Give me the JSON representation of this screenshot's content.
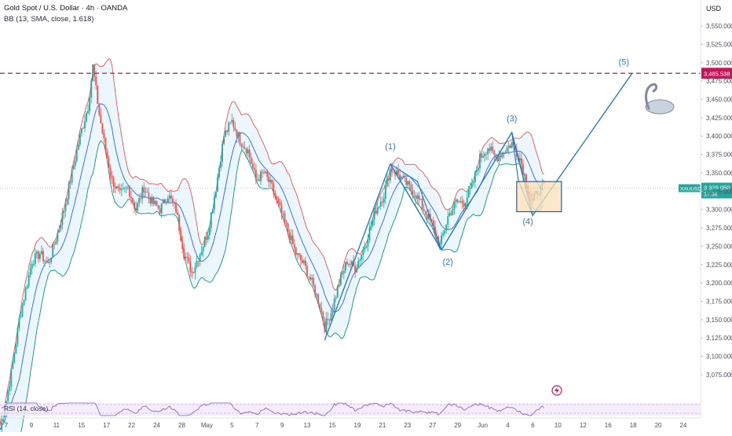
{
  "header": {
    "title": "Gold Spot / U.S. Dollar · 4h · OANDA",
    "indicator": "BB (13, SMA, close, 1.618)"
  },
  "colors": {
    "background": "#ffffff",
    "candle_up": "#26a69a",
    "candle_down": "#ef5350",
    "bb_upper": "#ef5350",
    "bb_basis": "#2962ff",
    "bb_lower": "#089981",
    "bb_fill": "#dceefb",
    "wave_line": "#2a7bbf",
    "target_line": "#c2185b",
    "price_tag": "#26a69a",
    "box_fill": "#fbe0b6",
    "box_stroke": "#1f5fae",
    "rsi_line": "#7e57c2",
    "rsi_band": "#f3e9fb"
  },
  "chart_data": {
    "type": "candlestick",
    "symbol": "XAUUSD",
    "currency_label": "USD",
    "y_range": [
      3045,
      3580
    ],
    "y_ticks": [
      "3,550.000",
      "3,525.000",
      "3,500.000",
      "3,475.000",
      "3,450.000",
      "3,425.000",
      "3,400.000",
      "3,375.000",
      "3,350.000",
      "3,325.000",
      "3,300.000",
      "3,275.000",
      "3,250.000",
      "3,225.000",
      "3,200.000",
      "3,175.000",
      "3,150.000",
      "3,125.000",
      "3,100.000",
      "3,075.000"
    ],
    "y_tick_values": [
      3550,
      3525,
      3500,
      3475,
      3450,
      3425,
      3400,
      3375,
      3350,
      3325,
      3300,
      3275,
      3250,
      3225,
      3200,
      3175,
      3150,
      3125,
      3100,
      3075
    ],
    "x_tick_labels": [
      "7",
      "9",
      "11",
      "15",
      "17",
      "22",
      "24",
      "28",
      "May",
      "5",
      "7",
      "9",
      "13",
      "15",
      "19",
      "21",
      "23",
      "27",
      "29",
      "Jun",
      "4",
      "6",
      "10",
      "12",
      "16",
      "18",
      "20",
      "24"
    ],
    "target_level": {
      "value": 3485.538,
      "label": "3,485.538"
    },
    "current_price": {
      "value": 3329.05,
      "label": "3,329.050",
      "countdown": "17:38",
      "symbol": "XAUUSD"
    },
    "close_path": [
      [
        0,
        3000
      ],
      [
        4,
        3040
      ],
      [
        8,
        3090
      ],
      [
        12,
        3150
      ],
      [
        16,
        3190
      ],
      [
        20,
        3230
      ],
      [
        25,
        3240
      ],
      [
        30,
        3225
      ],
      [
        35,
        3260
      ],
      [
        40,
        3300
      ],
      [
        45,
        3350
      ],
      [
        50,
        3400
      ],
      [
        55,
        3440
      ],
      [
        58,
        3495
      ],
      [
        62,
        3430
      ],
      [
        66,
        3380
      ],
      [
        70,
        3340
      ],
      [
        75,
        3320
      ],
      [
        80,
        3330
      ],
      [
        85,
        3300
      ],
      [
        90,
        3330
      ],
      [
        95,
        3310
      ],
      [
        100,
        3300
      ],
      [
        105,
        3320
      ],
      [
        110,
        3300
      ],
      [
        115,
        3240
      ],
      [
        120,
        3215
      ],
      [
        125,
        3240
      ],
      [
        130,
        3270
      ],
      [
        135,
        3330
      ],
      [
        140,
        3400
      ],
      [
        145,
        3420
      ],
      [
        150,
        3395
      ],
      [
        155,
        3380
      ],
      [
        160,
        3340
      ],
      [
        165,
        3350
      ],
      [
        170,
        3330
      ],
      [
        175,
        3300
      ],
      [
        180,
        3270
      ],
      [
        185,
        3240
      ],
      [
        190,
        3225
      ],
      [
        195,
        3200
      ],
      [
        200,
        3170
      ],
      [
        203,
        3140
      ],
      [
        207,
        3160
      ],
      [
        212,
        3200
      ],
      [
        217,
        3230
      ],
      [
        222,
        3220
      ],
      [
        228,
        3250
      ],
      [
        235,
        3300
      ],
      [
        240,
        3320
      ],
      [
        244,
        3355
      ],
      [
        248,
        3350
      ],
      [
        252,
        3340
      ],
      [
        256,
        3330
      ],
      [
        260,
        3320
      ],
      [
        265,
        3300
      ],
      [
        270,
        3280
      ],
      [
        275,
        3250
      ],
      [
        280,
        3290
      ],
      [
        285,
        3310
      ],
      [
        290,
        3310
      ],
      [
        295,
        3330
      ],
      [
        300,
        3370
      ],
      [
        305,
        3385
      ],
      [
        310,
        3370
      ],
      [
        315,
        3380
      ],
      [
        320,
        3390
      ],
      [
        325,
        3370
      ],
      [
        330,
        3330
      ],
      [
        333,
        3310
      ],
      [
        336,
        3325
      ],
      [
        340,
        3330
      ]
    ],
    "annotations": [
      {
        "label": "(1)",
        "t": 244,
        "price": 3382
      },
      {
        "label": "(2)",
        "t": 280,
        "price": 3225
      },
      {
        "label": "(3)",
        "t": 320,
        "price": 3420
      },
      {
        "label": "(4)",
        "t": 330,
        "price": 3280
      },
      {
        "label": "(5)",
        "t": 390,
        "price": 3497
      }
    ],
    "wave_points": [
      [
        203,
        3122
      ],
      [
        244,
        3362
      ],
      [
        276,
        3245
      ],
      [
        320,
        3405
      ],
      [
        333,
        3292
      ],
      [
        395,
        3485
      ]
    ],
    "wave_triangles": [
      [
        [
          244,
          3362
        ],
        [
          261,
          3338
        ],
        [
          276,
          3245
        ]
      ],
      [
        [
          320,
          3405
        ],
        [
          324,
          3340
        ],
        [
          333,
          3292
        ]
      ]
    ],
    "consolidation_box": {
      "t0": 323,
      "t1": 351,
      "price_top": 3338,
      "price_bottom": 3297
    },
    "rsi": {
      "label": "RSI (14, close)"
    }
  }
}
